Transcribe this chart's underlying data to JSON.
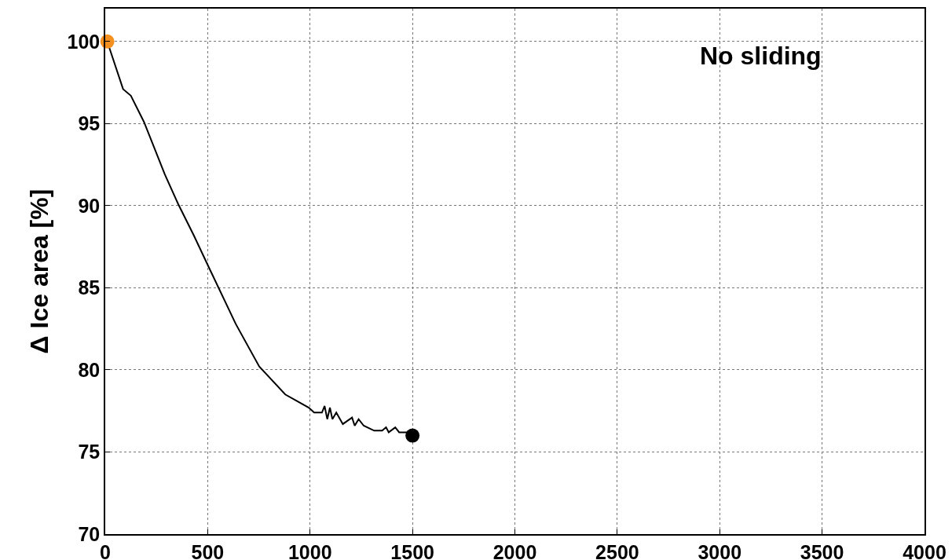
{
  "chart_data": {
    "type": "line",
    "ylabel": "Δ Ice area [%]",
    "annotations": [
      "No sliding"
    ],
    "xlim": [
      0,
      4000
    ],
    "xticks": [
      0,
      500,
      1000,
      1500,
      2000,
      2500,
      3000,
      3500,
      4000
    ],
    "ylim": [
      70,
      102
    ],
    "yticks": [
      70,
      75,
      80,
      85,
      90,
      95,
      100
    ],
    "grid": true,
    "legend": false,
    "line_style": "solid",
    "series": [
      {
        "marker": "none",
        "color": "#000000",
        "x": [
          10,
          23,
          87,
          125,
          189,
          240,
          291,
          356,
          432,
          496,
          637,
          752,
          879,
          994,
          1020,
          1058,
          1071,
          1084,
          1097,
          1109,
          1128,
          1160,
          1205,
          1218,
          1237,
          1262,
          1313,
          1352,
          1371,
          1384,
          1416,
          1435,
          1474,
          1500
        ],
        "values": [
          100,
          99.5,
          97.1,
          96.7,
          95.1,
          93.5,
          91.9,
          90.1,
          88.2,
          86.5,
          82.8,
          80.2,
          78.5,
          77.7,
          77.4,
          77.4,
          77.8,
          77.0,
          77.7,
          77.0,
          77.4,
          76.7,
          77.1,
          76.6,
          77.0,
          76.6,
          76.3,
          76.3,
          76.5,
          76.2,
          76.5,
          76.2,
          76.2,
          76.0
        ]
      },
      {
        "type": "scatter",
        "marker": "circle",
        "color": "#f39020",
        "x": [
          10
        ],
        "values": [
          100
        ]
      },
      {
        "type": "scatter",
        "marker": "circle",
        "color": "#000000",
        "x": [
          1500
        ],
        "values": [
          76
        ]
      }
    ]
  }
}
